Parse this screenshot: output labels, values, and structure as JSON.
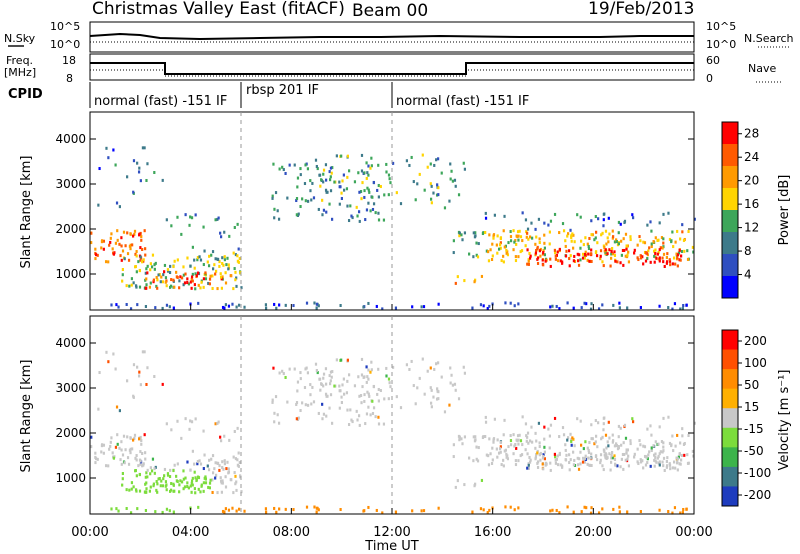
{
  "header": {
    "station": "Christmas Valley East (fitACF)",
    "beam": "Beam 00",
    "date": "19/Feb/2013"
  },
  "panels": {
    "noise": {
      "left_label": "N.Sky",
      "right_label": "N.Search",
      "left_ticks": [
        "10^5",
        "10^0"
      ],
      "right_ticks": [
        "10^5",
        "10^0"
      ]
    },
    "freq": {
      "left_label_line1": "Freq.",
      "left_label_line2": "[MHz]",
      "right_label": "Nave",
      "left_ticks": [
        "18",
        "8"
      ],
      "right_ticks": [
        "60",
        "0"
      ]
    },
    "cpid": {
      "label": "CPID",
      "segments": [
        {
          "text": "normal (fast) -151 IF"
        },
        {
          "text": "rbsp 201 IF"
        },
        {
          "text": "normal (fast) -151 IF"
        }
      ]
    }
  },
  "chart_data": [
    {
      "type": "heatmap",
      "name": "power",
      "ylabel": "Slant Range [km]",
      "yticks": [
        1000,
        2000,
        3000,
        4000
      ],
      "ylim": [
        200,
        4600
      ],
      "colorbar": {
        "label": "Power [dB]",
        "ticks": [
          4,
          8,
          12,
          16,
          20,
          24,
          28
        ],
        "range": [
          0,
          30
        ],
        "colors": [
          "#0000ff",
          "#2f4fc0",
          "#3d7a8a",
          "#3da65a",
          "#ffd400",
          "#ff9a00",
          "#ff5a00",
          "#ff0000"
        ]
      }
    },
    {
      "type": "heatmap",
      "name": "velocity",
      "ylabel": "Slant Range [km]",
      "yticks": [
        1000,
        2000,
        3000,
        4000
      ],
      "ylim": [
        200,
        4600
      ],
      "colorbar": {
        "label": "Velocity [m s⁻¹]",
        "ticks": [
          200,
          100,
          50,
          15,
          -15,
          -50,
          -100,
          -200
        ],
        "colors": [
          "#1e3cbe",
          "#3d7a8a",
          "#3cb44b",
          "#7cdc3c",
          "#c8c8c8",
          "#ffb000",
          "#ff8c00",
          "#ff5000",
          "#ff0000"
        ]
      }
    }
  ],
  "xaxis": {
    "label": "Time UT",
    "ticks": [
      "00:00",
      "04:00",
      "08:00",
      "12:00",
      "16:00",
      "20:00",
      "00:00"
    ]
  }
}
